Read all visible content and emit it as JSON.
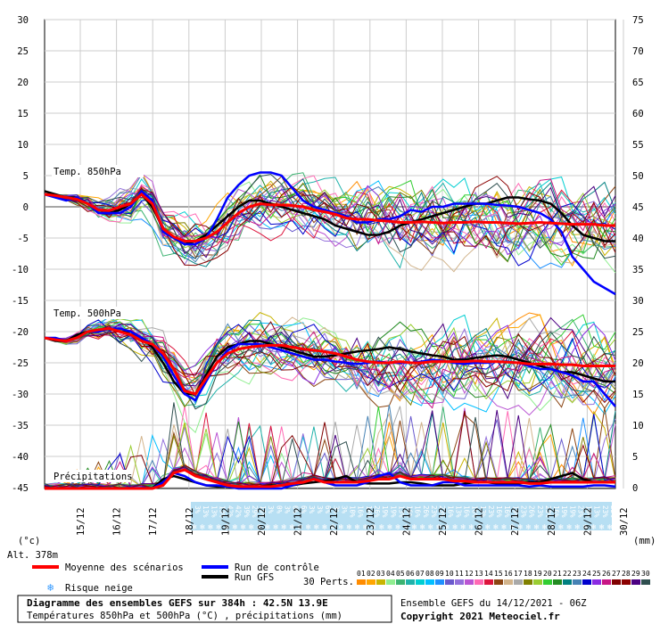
{
  "chart_data": {
    "type": "line",
    "title": "Diagramme des ensembles GEFS sur 384h : 42.5N 13.9E",
    "subtitle": "Températures 850hPa et 500hPa (°C) , précipitations (mm)",
    "run_info": "Ensemble GEFS du 14/12/2021 - 06Z",
    "copyright": "Copyright 2021 Meteociel.fr",
    "altitude": "Alt. 378m",
    "y_left_unit": "(°c)",
    "y_right_unit": "(mm)",
    "y_left_ticks": [
      "30",
      "25",
      "20",
      "15",
      "10",
      "5",
      "0",
      "-5",
      "-10",
      "-15",
      "-20",
      "-25",
      "-30",
      "-35",
      "-40",
      "-45"
    ],
    "y_right_ticks": [
      "75",
      "70",
      "65",
      "60",
      "55",
      "50",
      "45",
      "40",
      "35",
      "30",
      "25",
      "20",
      "15",
      "10",
      "5",
      "0"
    ],
    "ylim_temp": [
      -45,
      30
    ],
    "ylim_precip_mm": [
      0,
      75
    ],
    "grid": true,
    "x_labels": [
      "15/12",
      "16/12",
      "17/12",
      "18/12",
      "19/12",
      "20/12",
      "21/12",
      "22/12",
      "23/12",
      "24/12",
      "25/12",
      "26/12",
      "27/12",
      "28/12",
      "29/12",
      "30/12"
    ],
    "panel_labels": {
      "t850": "Temp. 850hPa",
      "t500": "Temp. 500hPa",
      "precip": "Précipitations"
    },
    "snow_risk": [
      "3%",
      "13%",
      "13%",
      "13%",
      "42%",
      "42%",
      "39%",
      "29%",
      "16%",
      "3%",
      "0%",
      "3%",
      "6%",
      "6%",
      "3%",
      "3%",
      "6%",
      "3%",
      "3%",
      "10%",
      "16%",
      "16%",
      "26%",
      "19%",
      "19%",
      "13%",
      "16%",
      "16%",
      "26%",
      "23%",
      "23%",
      "16%",
      "13%",
      "16%",
      "16%",
      "13%",
      "23%",
      "16%",
      "16%",
      "19%",
      "23%",
      "26%",
      "23%",
      "23%",
      "16%",
      "19%",
      "19%",
      "23%",
      "16%",
      "13%",
      "23%",
      "23%"
    ],
    "legend": {
      "mean": "Moyenne des scénarios",
      "control": "Run de contrôle",
      "gfs": "Run GFS",
      "snow": "Risque neige",
      "perts": "30 Perts."
    },
    "pert_numbers": [
      "01",
      "02",
      "03",
      "04",
      "05",
      "06",
      "07",
      "08",
      "09",
      "10",
      "11",
      "12",
      "13",
      "14",
      "15",
      "16",
      "17",
      "18",
      "19",
      "20",
      "21",
      "22",
      "23",
      "24",
      "25",
      "26",
      "27",
      "28",
      "29",
      "30"
    ],
    "pert_colors": [
      "#ff8c00",
      "#ffa500",
      "#c8b400",
      "#90ee90",
      "#3cb371",
      "#20b2aa",
      "#00ced1",
      "#00bfff",
      "#1e90ff",
      "#6a5acd",
      "#9370db",
      "#ba55d3",
      "#ff69b4",
      "#dc143c",
      "#8b4513",
      "#d2b48c",
      "#a9a9a9",
      "#808000",
      "#9acd32",
      "#32cd32",
      "#228b22",
      "#008080",
      "#4682b4",
      "#0000cd",
      "#8a2be2",
      "#c71585",
      "#800000",
      "#8b0000",
      "#4b0082",
      "#2f4f4f"
    ],
    "series": [
      {
        "name": "Moyenne des scénarios",
        "color": "#ff0000",
        "t850": [
          2,
          1.8,
          1.5,
          1.2,
          0.5,
          -0.5,
          -0.6,
          0,
          0.5,
          2,
          0.5,
          -3.5,
          -4.8,
          -5.5,
          -5.5,
          -5,
          -4,
          -2.5,
          -1,
          0,
          0.5,
          0.3,
          0.3,
          0.2,
          0,
          -0.5,
          -0.8,
          -1.2,
          -1.8,
          -2,
          -2,
          -2.2,
          -2.3,
          -2.5,
          -2.5,
          -2.4,
          -2.5,
          -2.6,
          -2.5,
          -2.5,
          -2.4,
          -2.5,
          -2.5,
          -2.6,
          -2.7,
          -2.6,
          -2.5,
          -2.6,
          -2.7,
          -2.8,
          -2.8,
          -2.8,
          -3,
          -3
        ],
        "t500": [
          -21,
          -21.3,
          -21.5,
          -21,
          -20,
          -19.7,
          -19.5,
          -20,
          -20.5,
          -21.5,
          -22,
          -23.5,
          -26,
          -29.5,
          -30,
          -27.5,
          -25,
          -23.5,
          -22.8,
          -22.5,
          -22.3,
          -22.2,
          -22.2,
          -22.5,
          -22.8,
          -23,
          -23.2,
          -23.5,
          -24,
          -24.5,
          -24.8,
          -25,
          -25,
          -24.8,
          -25,
          -25,
          -24.8,
          -24.8,
          -24.8,
          -24.8,
          -24.7,
          -24.8,
          -24.8,
          -24.9,
          -25,
          -25.2,
          -25.2,
          -25.2,
          -25.3,
          -25.3,
          -25.5,
          -25.5,
          -25.5,
          -25.5
        ],
        "precip": [
          0,
          0,
          0,
          0,
          0,
          0,
          0,
          0,
          0,
          0,
          0,
          0.5,
          2.5,
          3,
          2,
          1.5,
          1,
          0.5,
          0.3,
          0.3,
          0.3,
          0.3,
          0.5,
          0.8,
          1,
          1.5,
          1,
          1,
          1,
          1,
          1.2,
          1.5,
          1.5,
          2,
          1.5,
          1.5,
          1.5,
          1.5,
          1.2,
          1.2,
          1,
          1,
          1,
          1,
          1,
          0.8,
          0.8,
          1,
          1,
          1,
          1,
          1,
          1,
          1
        ]
      },
      {
        "name": "Run de contrôle",
        "color": "#0000ff",
        "t850": [
          2,
          1.5,
          1,
          1.5,
          0.5,
          -1,
          -1,
          -1,
          0,
          2.5,
          1,
          -4,
          -5,
          -6,
          -6,
          -5,
          -2,
          1.5,
          3.5,
          5,
          5.5,
          5.5,
          5,
          3,
          1,
          0,
          -0.5,
          -1,
          -1.5,
          -2.5,
          -2.5,
          -2,
          -2,
          -1.5,
          -0.5,
          -0.8,
          0,
          0,
          0.5,
          0.5,
          0.5,
          0.5,
          0.3,
          0.2,
          0,
          -0.5,
          -1,
          -2,
          -4,
          -8,
          -10,
          -12,
          -13,
          -14
        ],
        "t500": [
          -21,
          -21,
          -21.5,
          -21,
          -20,
          -20,
          -19.5,
          -19.5,
          -20,
          -21,
          -22,
          -24,
          -27,
          -30,
          -31,
          -28,
          -25,
          -23,
          -22,
          -22,
          -22,
          -22.5,
          -23,
          -23.5,
          -24,
          -24.5,
          -24.5,
          -24.8,
          -25,
          -25.2,
          -25,
          -24.8,
          -25,
          -25,
          -25,
          -24.8,
          -24.5,
          -24.7,
          -25,
          -25.2,
          -25,
          -25,
          -24.8,
          -24.8,
          -25,
          -25.5,
          -26,
          -26,
          -26.5,
          -27,
          -28,
          -28,
          -30,
          -32
        ],
        "precip": [
          0,
          0,
          0,
          0,
          0,
          0,
          0,
          0,
          0,
          0,
          0,
          1,
          2.5,
          2,
          1,
          0.5,
          0.5,
          0.3,
          0,
          0,
          0,
          0,
          0,
          0.5,
          1,
          1.5,
          1,
          0.5,
          0.5,
          0.5,
          1,
          2,
          2.5,
          1,
          0.5,
          0.5,
          0.5,
          1,
          1,
          0.5,
          0.5,
          0.5,
          0.5,
          0.5,
          0.5,
          0.3,
          0.5,
          0.3,
          0.3,
          0.3,
          0.3,
          0.5,
          0.5,
          0.3
        ]
      },
      {
        "name": "Run GFS",
        "color": "#000000",
        "t850": [
          2.5,
          2,
          1.5,
          1.5,
          0.5,
          -1,
          -1,
          -0.5,
          0.5,
          2,
          0,
          -3.5,
          -5,
          -6,
          -5.5,
          -4.5,
          -3,
          -1.5,
          0,
          1,
          1,
          0.5,
          0,
          -0.5,
          -1,
          -1.5,
          -2,
          -3,
          -3.5,
          -4,
          -4.5,
          -4.5,
          -4,
          -3,
          -2.5,
          -2,
          -1.5,
          -1,
          -0.5,
          0,
          0.5,
          0.5,
          1,
          1.5,
          1.5,
          1.2,
          1,
          0.5,
          -1,
          -3,
          -4.5,
          -5,
          -5.5,
          -5.5
        ],
        "t500": [
          -21,
          -21.5,
          -21.5,
          -20.5,
          -20,
          -20,
          -19.5,
          -20,
          -20,
          -21,
          -22.5,
          -25,
          -28,
          -30,
          -30,
          -27,
          -24,
          -22.5,
          -22,
          -21.5,
          -21.5,
          -22,
          -22.5,
          -23,
          -23.5,
          -24,
          -24,
          -23.8,
          -23.5,
          -23.2,
          -23,
          -22.8,
          -22.5,
          -22.8,
          -23.2,
          -23.5,
          -23.8,
          -24,
          -24.5,
          -24.5,
          -24.2,
          -24,
          -23.8,
          -24,
          -24.5,
          -25,
          -25.5,
          -26,
          -26.5,
          -26.5,
          -27,
          -27.5,
          -28,
          -28
        ],
        "precip": [
          0,
          0,
          0,
          0,
          0,
          0,
          0,
          0,
          0,
          0,
          0,
          1.5,
          2,
          1.5,
          1,
          0.5,
          0.3,
          0.3,
          0.3,
          0.3,
          0.3,
          0.5,
          0.5,
          0.5,
          0.8,
          1,
          1.2,
          1.5,
          2,
          1,
          0.8,
          0.8,
          0.8,
          1,
          1,
          0.8,
          0.5,
          0.5,
          0.5,
          0.8,
          1,
          1,
          0.8,
          0.8,
          0.8,
          1,
          1,
          1.5,
          2,
          2.5,
          1.5,
          1,
          1,
          1
        ]
      }
    ]
  }
}
